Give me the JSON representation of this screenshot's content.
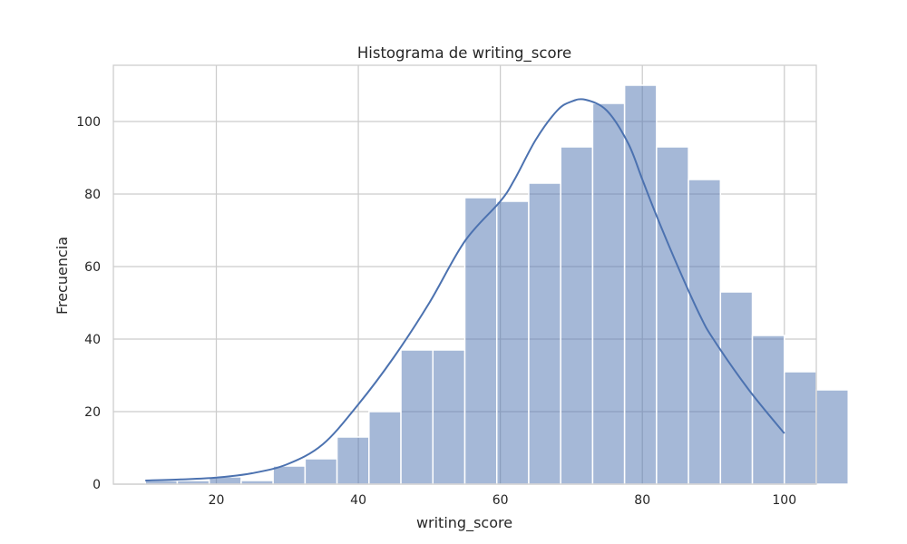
{
  "chart_data": {
    "type": "bar",
    "title": "Histograma de writing_score",
    "xlabel": "writing_score",
    "ylabel": "Frecuencia",
    "xlim": [
      5.5,
      104.5
    ],
    "ylim": [
      0,
      115.5
    ],
    "xticks": [
      20,
      40,
      60,
      80,
      100
    ],
    "yticks": [
      0,
      20,
      40,
      60,
      80,
      100
    ],
    "grid": true,
    "bin_start": 10,
    "bin_width": 4.5,
    "values": [
      1,
      1,
      2,
      1,
      5,
      7,
      13,
      20,
      37,
      37,
      79,
      78,
      83,
      93,
      105,
      110,
      93,
      84,
      53,
      41,
      31,
      26
    ],
    "kde": {
      "x": [
        10,
        15,
        20,
        25,
        30,
        35,
        40,
        45,
        50,
        55,
        60,
        62,
        65,
        68,
        70,
        72,
        75,
        78,
        80,
        82,
        85,
        88,
        90,
        95,
        100
      ],
      "y": [
        1,
        1.3,
        1.8,
        3,
        5.5,
        11,
        22,
        35,
        50,
        67,
        78,
        84,
        95,
        103,
        105.5,
        106,
        103,
        94,
        84,
        74,
        60,
        47,
        40,
        26,
        14
      ]
    },
    "bar_color": "#4c72b0",
    "bar_opacity": 0.5,
    "line_color": "#4c72b0",
    "grid_color": "#cccccc"
  }
}
